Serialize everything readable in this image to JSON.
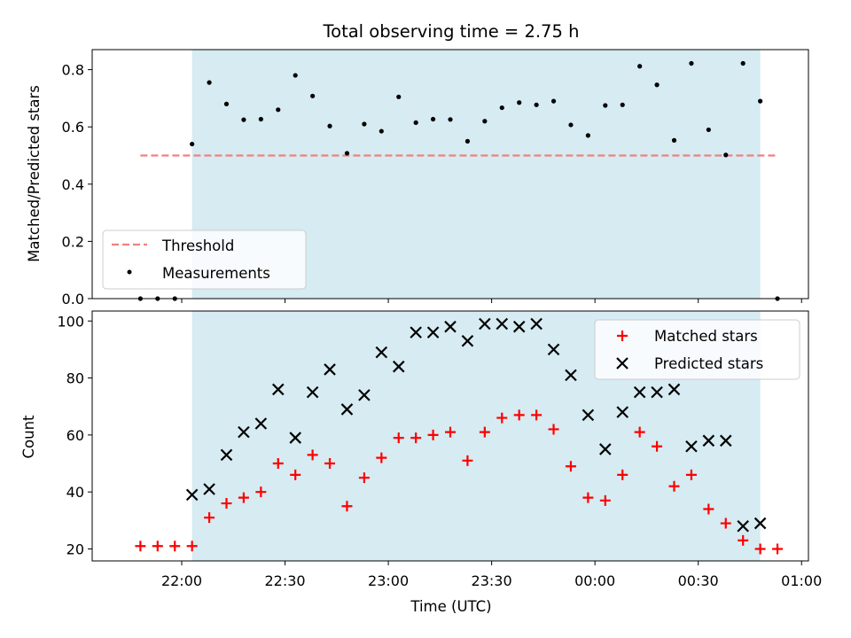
{
  "colors": {
    "observing_band": "#add8e6",
    "threshold": "#f08080",
    "measurements": "#000000",
    "matched": "#ff0000",
    "predicted": "#000000"
  },
  "chart_data": [
    {
      "type": "scatter",
      "title": "Total observing time = 2.75 h",
      "xlabel": "",
      "ylabel": "Matched/Predicted stars",
      "ylim": [
        0,
        0.87
      ],
      "y_ticks": [
        0.0,
        0.2,
        0.4,
        0.6,
        0.8
      ],
      "y_tick_labels": [
        "0.0",
        "0.2",
        "0.4",
        "0.6",
        "0.8"
      ],
      "observing_window": [
        "22:03",
        "24:48"
      ],
      "legend": {
        "placement": "lower-left",
        "entries": [
          "Threshold",
          "Measurements"
        ]
      },
      "series": [
        {
          "name": "Threshold",
          "kind": "dashed-line",
          "x": [
            "21:48",
            "24:53"
          ],
          "y": [
            0.5,
            0.5
          ]
        },
        {
          "name": "Measurements",
          "kind": "dots",
          "x": [
            "21:48",
            "21:53",
            "21:58",
            "22:03",
            "22:08",
            "22:13",
            "22:18",
            "22:23",
            "22:28",
            "22:33",
            "22:38",
            "22:43",
            "22:48",
            "22:53",
            "22:58",
            "23:03",
            "23:08",
            "23:13",
            "23:18",
            "23:23",
            "23:28",
            "23:33",
            "23:38",
            "23:43",
            "23:48",
            "23:53",
            "23:58",
            "24:03",
            "24:08",
            "24:13",
            "24:18",
            "24:23",
            "24:28",
            "24:33",
            "24:38",
            "24:43",
            "24:48",
            "24:53"
          ],
          "y": [
            0.0,
            0.0,
            0.0,
            0.54,
            0.755,
            0.68,
            0.625,
            0.627,
            0.66,
            0.78,
            0.708,
            0.603,
            0.508,
            0.61,
            0.585,
            0.705,
            0.615,
            0.627,
            0.626,
            0.55,
            0.62,
            0.667,
            0.685,
            0.677,
            0.69,
            0.607,
            0.57,
            0.675,
            0.677,
            0.812,
            0.747,
            0.553,
            0.822,
            0.59,
            0.502,
            0.822,
            0.69,
            0.0
          ]
        }
      ]
    },
    {
      "type": "scatter",
      "xlabel": "Time (UTC)",
      "ylabel": "Count",
      "ylim": [
        15.8,
        103.5
      ],
      "xlim": [
        "21:34",
        "25:02"
      ],
      "x_ticks": [
        "22:00",
        "22:30",
        "23:00",
        "23:30",
        "24:00",
        "24:30",
        "25:00"
      ],
      "x_tick_labels": [
        "22:00",
        "22:30",
        "23:00",
        "23:30",
        "00:00",
        "00:30",
        "01:00"
      ],
      "y_ticks": [
        20,
        40,
        60,
        80,
        100
      ],
      "y_tick_labels": [
        "20",
        "40",
        "60",
        "80",
        "100"
      ],
      "observing_window": [
        "22:03",
        "24:48"
      ],
      "legend": {
        "placement": "upper-right",
        "entries": [
          "Matched stars",
          "Predicted stars"
        ]
      },
      "series": [
        {
          "name": "Matched stars",
          "marker": "+",
          "x": [
            "21:48",
            "21:53",
            "21:58",
            "22:03",
            "22:08",
            "22:13",
            "22:18",
            "22:23",
            "22:28",
            "22:33",
            "22:38",
            "22:43",
            "22:48",
            "22:53",
            "22:58",
            "23:03",
            "23:08",
            "23:13",
            "23:18",
            "23:23",
            "23:28",
            "23:33",
            "23:38",
            "23:43",
            "23:48",
            "23:53",
            "23:58",
            "24:03",
            "24:08",
            "24:13",
            "24:18",
            "24:23",
            "24:28",
            "24:33",
            "24:38",
            "24:43",
            "24:48",
            "24:53"
          ],
          "y": [
            21,
            21,
            21,
            21,
            31,
            36,
            38,
            40,
            50,
            46,
            53,
            50,
            35,
            45,
            52,
            59,
            59,
            60,
            61,
            51,
            61,
            66,
            67,
            67,
            62,
            49,
            38,
            37,
            46,
            61,
            56,
            42,
            46,
            34,
            29,
            23,
            20,
            20
          ]
        },
        {
          "name": "Predicted stars",
          "marker": "x",
          "x": [
            "22:03",
            "22:08",
            "22:13",
            "22:18",
            "22:23",
            "22:28",
            "22:33",
            "22:38",
            "22:43",
            "22:48",
            "22:53",
            "22:58",
            "23:03",
            "23:08",
            "23:13",
            "23:18",
            "23:23",
            "23:28",
            "23:33",
            "23:38",
            "23:43",
            "23:48",
            "23:53",
            "23:58",
            "24:03",
            "24:08",
            "24:13",
            "24:18",
            "24:23",
            "24:28",
            "24:33",
            "24:38",
            "24:43",
            "24:48"
          ],
          "y": [
            39,
            41,
            53,
            61,
            64,
            76,
            59,
            75,
            83,
            69,
            74,
            89,
            84,
            96,
            96,
            98,
            93,
            99,
            99,
            98,
            99,
            90,
            81,
            67,
            55,
            68,
            75,
            75,
            76,
            56,
            58,
            58,
            28,
            29
          ]
        }
      ]
    }
  ]
}
